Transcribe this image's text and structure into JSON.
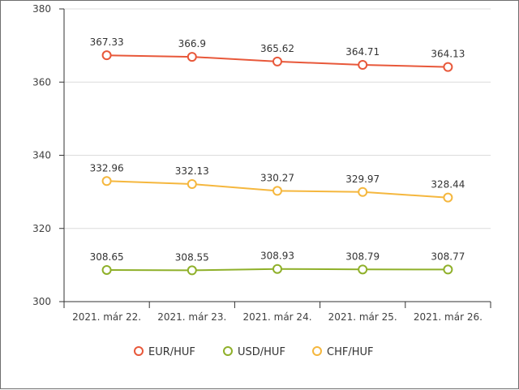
{
  "chart_data": {
    "type": "line",
    "categories": [
      "2021. már 22.",
      "2021. már 23.",
      "2021. már 24.",
      "2021. már 25.",
      "2021. már 26."
    ],
    "series": [
      {
        "name": "EUR/HUF",
        "color": "#e8583a",
        "values": [
          367.33,
          366.9,
          365.62,
          364.71,
          364.13
        ],
        "labels": [
          "367.33",
          "366.9",
          "365.62",
          "364.71",
          "364.13"
        ]
      },
      {
        "name": "USD/HUF",
        "color": "#8fb02a",
        "values": [
          308.65,
          308.55,
          308.93,
          308.79,
          308.77
        ],
        "labels": [
          "308.65",
          "308.55",
          "308.93",
          "308.79",
          "308.77"
        ]
      },
      {
        "name": "CHF/HUF",
        "color": "#f5b73e",
        "values": [
          332.96,
          332.13,
          330.27,
          329.97,
          328.44
        ],
        "labels": [
          "332.96",
          "332.13",
          "330.27",
          "329.97",
          "328.44"
        ]
      }
    ],
    "ylim": [
      300,
      380
    ],
    "yticks": [
      300,
      320,
      340,
      360,
      380
    ],
    "ytick_labels": [
      "300",
      "320",
      "340",
      "360",
      "380"
    ],
    "grid": true,
    "legend_position": "bottom",
    "title": "",
    "xlabel": "",
    "ylabel": ""
  }
}
